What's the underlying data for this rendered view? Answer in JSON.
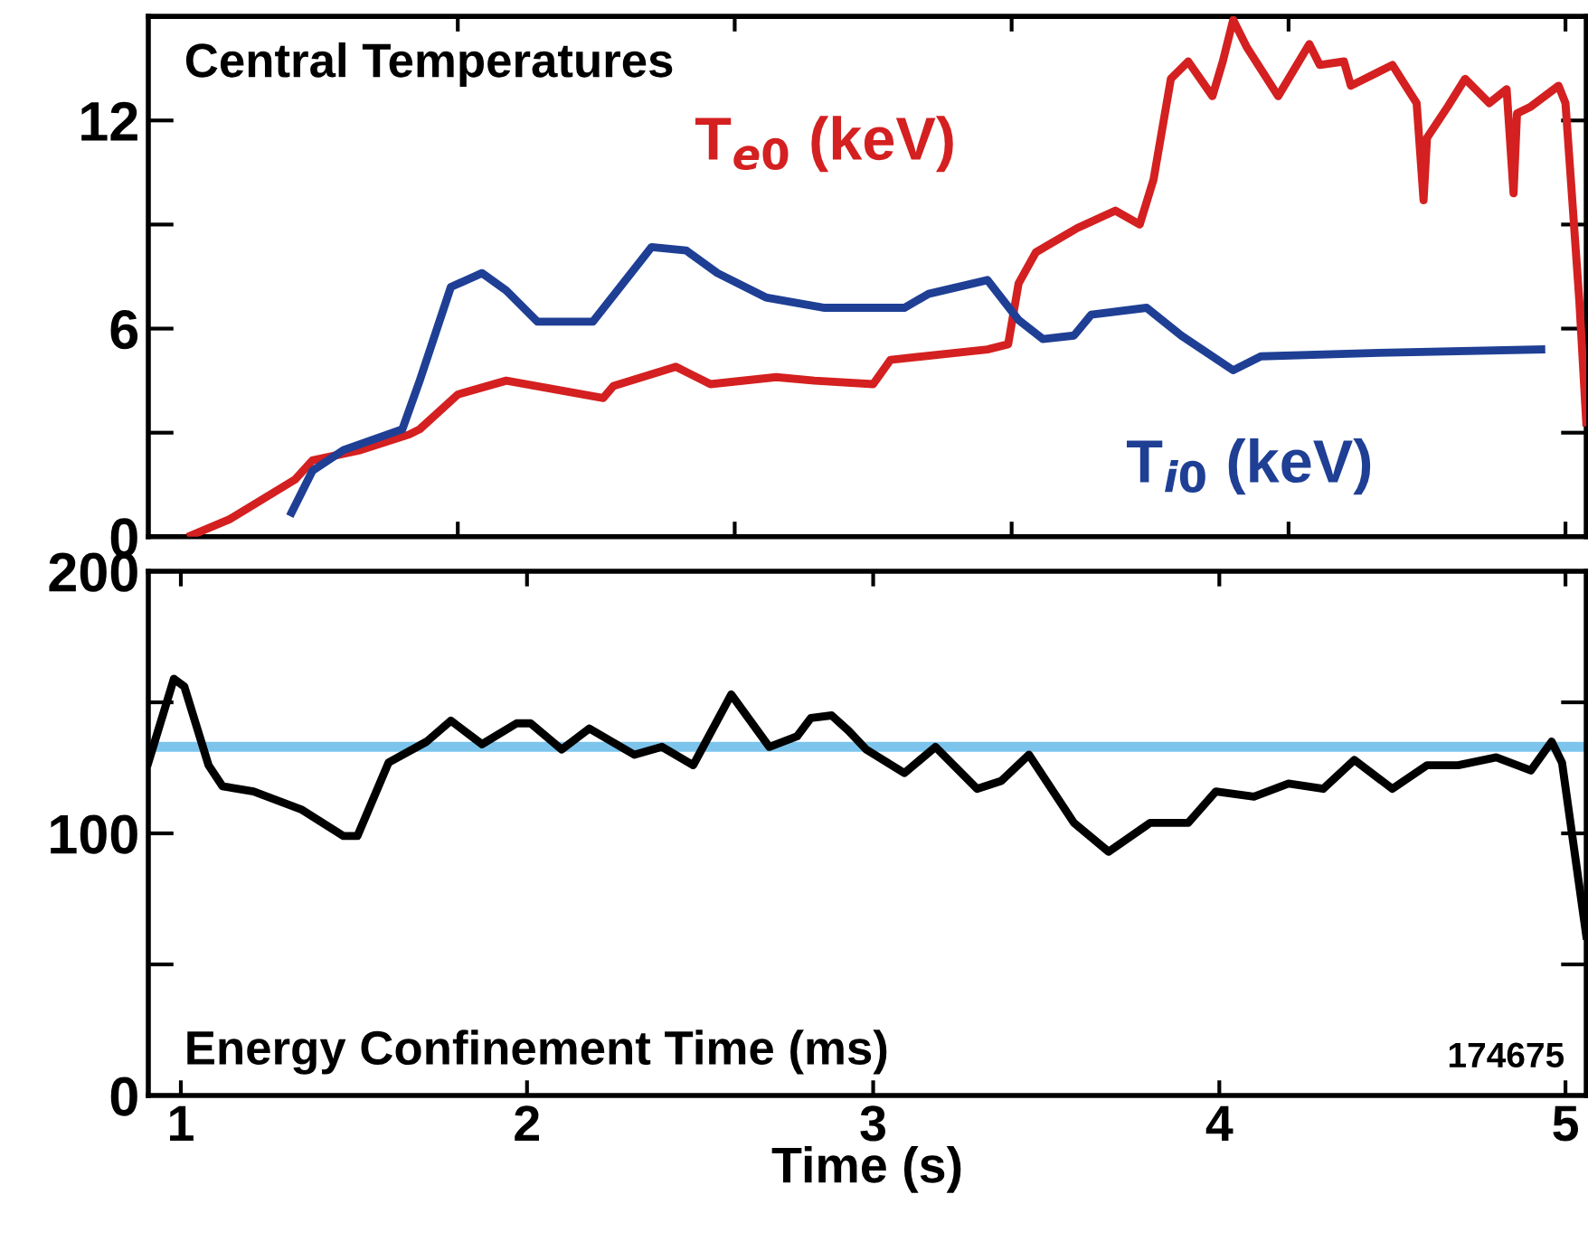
{
  "chart_data": [
    {
      "type": "line",
      "title": "Central Temperatures",
      "xlim": [
        0.906,
        5.06
      ],
      "ylim": [
        0,
        15
      ],
      "xticks": [
        {
          "value": 1.8,
          "label": null
        },
        {
          "value": 2.6,
          "label": null
        },
        {
          "value": 3.4,
          "label": null
        },
        {
          "value": 4.2,
          "label": null
        },
        {
          "value": 5.0,
          "label": null
        }
      ],
      "yticks": [
        0,
        {
          "value": 3,
          "label": null
        },
        6,
        {
          "value": 9,
          "label": null
        },
        12
      ],
      "tick_labels": "y",
      "grid": false,
      "legend": false,
      "marker": "none",
      "line_style": "solid",
      "series": [
        {
          "name": "T$_{e0}$ (keV)",
          "color": "#d42020",
          "x": [
            1.03,
            1.14,
            1.33,
            1.38,
            1.52,
            1.66,
            1.69,
            1.8,
            1.94,
            2.22,
            2.25,
            2.43,
            2.53,
            2.72,
            2.83,
            3.0,
            3.05,
            3.33,
            3.39,
            3.42,
            3.47,
            3.59,
            3.7,
            3.77,
            3.81,
            3.86,
            3.91,
            3.98,
            4.01,
            4.04,
            4.08,
            4.17,
            4.26,
            4.29,
            4.36,
            4.38,
            4.5,
            4.57,
            4.59,
            4.6,
            4.66,
            4.71,
            4.78,
            4.83,
            4.85,
            4.86,
            4.9,
            4.98,
            5.0,
            5.04,
            5.06
          ],
          "values": [
            0.04,
            0.5,
            1.65,
            2.2,
            2.5,
            2.95,
            3.1,
            4.1,
            4.5,
            4.0,
            4.35,
            4.9,
            4.4,
            4.6,
            4.5,
            4.4,
            5.1,
            5.4,
            5.55,
            7.3,
            8.2,
            8.9,
            9.4,
            9.0,
            10.3,
            13.2,
            13.7,
            12.7,
            13.7,
            14.9,
            14.1,
            12.7,
            14.2,
            13.6,
            13.7,
            13.0,
            13.6,
            12.5,
            9.7,
            11.5,
            12.4,
            13.2,
            12.5,
            12.9,
            9.9,
            12.2,
            12.4,
            13.0,
            12.5,
            6.8,
            3.3
          ]
        },
        {
          "name": "T$_{i0}$ (keV)",
          "color": "#1f3f95",
          "x": [
            1.32,
            1.38,
            1.47,
            1.64,
            1.69,
            1.78,
            1.87,
            1.94,
            2.03,
            2.19,
            2.36,
            2.46,
            2.55,
            2.69,
            2.86,
            3.09,
            3.16,
            3.33,
            3.42,
            3.49,
            3.58,
            3.63,
            3.79,
            3.89,
            4.04,
            4.12,
            4.46,
            4.93
          ],
          "values": [
            0.7,
            1.9,
            2.5,
            3.1,
            4.5,
            7.2,
            7.6,
            7.1,
            6.2,
            6.2,
            8.35,
            8.25,
            7.6,
            6.9,
            6.6,
            6.6,
            7.0,
            7.4,
            6.25,
            5.7,
            5.8,
            6.4,
            6.6,
            5.8,
            4.8,
            5.2,
            5.3,
            5.4
          ]
        }
      ]
    },
    {
      "type": "line",
      "title": "Energy Confinement Time (ms)",
      "xlabel": "Time (s)",
      "xlim": [
        0.906,
        5.06
      ],
      "ylim": [
        0,
        200
      ],
      "xticks": [
        1,
        2,
        3,
        4,
        5
      ],
      "yticks": [
        0,
        {
          "value": 50,
          "label": null
        },
        100,
        {
          "value": 150,
          "label": null
        },
        200
      ],
      "grid": false,
      "legend": false,
      "marker": "none",
      "line_style": "solid",
      "annotations": [
        "174675"
      ],
      "ref_lines": [
        {
          "axis": "y",
          "value": 133,
          "color": "#7cc4ec"
        }
      ],
      "series": [
        {
          "color": "#000000",
          "x": [
            0.906,
            0.98,
            1.01,
            1.08,
            1.12,
            1.21,
            1.35,
            1.47,
            1.51,
            1.6,
            1.71,
            1.78,
            1.87,
            1.97,
            2.01,
            2.1,
            2.18,
            2.31,
            2.39,
            2.48,
            2.59,
            2.7,
            2.78,
            2.82,
            2.88,
            2.93,
            2.98,
            3.09,
            3.18,
            3.3,
            3.37,
            3.45,
            3.58,
            3.68,
            3.8,
            3.91,
            3.99,
            4.1,
            4.2,
            4.3,
            4.39,
            4.5,
            4.6,
            4.69,
            4.8,
            4.9,
            4.96,
            4.99,
            5.06
          ],
          "values": [
            127,
            159,
            156,
            126,
            118,
            116,
            109,
            99,
            99,
            127,
            135,
            143,
            134,
            142,
            142,
            132,
            140,
            130,
            133,
            126,
            153,
            133,
            137,
            144,
            145,
            139,
            132,
            123,
            133,
            117,
            120,
            130,
            104,
            93,
            104,
            104,
            116,
            114,
            119,
            117,
            128,
            117,
            126,
            126,
            129,
            124,
            135,
            127,
            61
          ]
        }
      ]
    }
  ]
}
